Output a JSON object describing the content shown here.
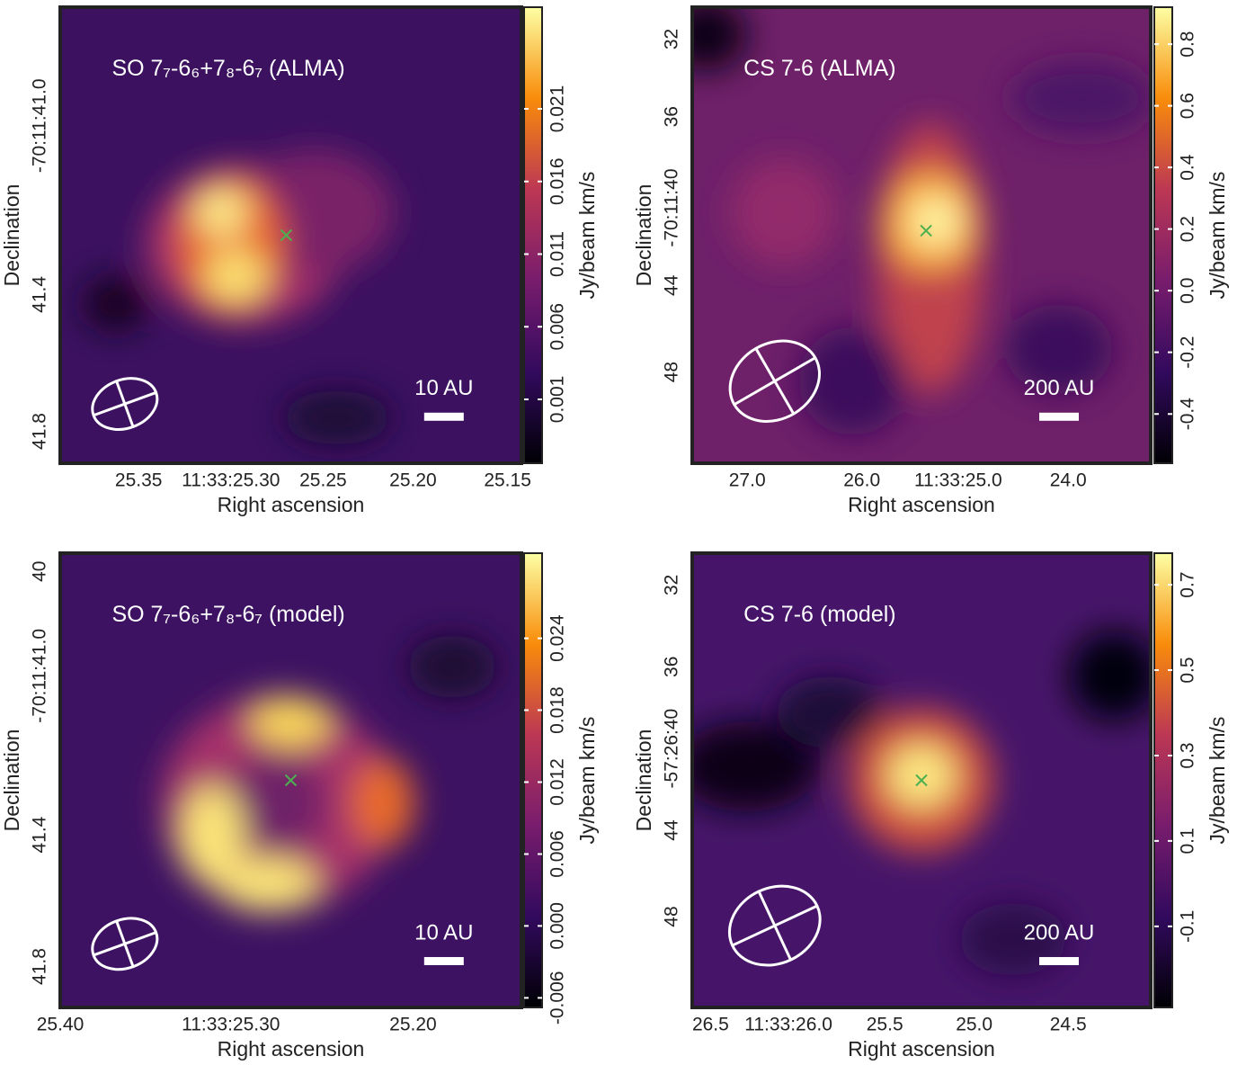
{
  "panels": [
    {
      "title": "SO 7₇-6₆+7₈-6₇ (ALMA)",
      "x_label": "Right ascension",
      "y_label": "Declination",
      "x_ticks": [
        "25.35",
        "11:33:25.30",
        "25.25",
        "25.20",
        "25.15"
      ],
      "y_ticks": [
        "-70:11:41.0",
        "41.4",
        "41.8"
      ],
      "scale_bar": "10 AU",
      "colorbar": {
        "label": "Jy/beam km/s",
        "lim": [
          -0.0034,
          0.028
        ],
        "ticks": [
          0.001,
          0.006,
          0.011,
          0.016,
          0.021
        ]
      }
    },
    {
      "title": "CS 7-6 (ALMA)",
      "x_label": "Right ascension",
      "y_label": "Declination",
      "x_ticks": [
        "27.0",
        "26.0",
        "11:33:25.0",
        "24.0"
      ],
      "y_ticks": [
        "32",
        "36",
        "-70:11:40",
        "44",
        "48"
      ],
      "scale_bar": "200 AU",
      "colorbar": {
        "label": "Jy/beam km/s",
        "lim": [
          -0.56,
          0.92
        ],
        "ticks": [
          -0.4,
          -0.2,
          {
            "value": 0,
            "label": "0.0"
          },
          0.2,
          0.4,
          0.6,
          0.8
        ]
      }
    },
    {
      "title": "SO 7₇-6₆+7₈-6₇ (model)",
      "x_label": "Right ascension",
      "y_label": "Declination",
      "x_ticks": [
        "25.40",
        "11:33:25.30",
        "25.20"
      ],
      "y_ticks": [
        "40",
        "-70:11:41.0",
        "41.4",
        "41.8"
      ],
      "scale_bar": "10 AU",
      "colorbar": {
        "label": "Jy/beam km/s",
        "lim": [
          -0.0068,
          0.0311
        ],
        "ticks": [
          -0.006,
          {
            "value": 0,
            "label": "0.000"
          },
          0.006,
          0.012,
          0.018,
          0.024
        ]
      }
    },
    {
      "title": "CS 7-6 (model)",
      "x_label": "Right ascension",
      "y_label": "Declination",
      "x_ticks": [
        "26.5",
        "11:33:26.0",
        "25.5",
        "25.0",
        "24.5"
      ],
      "y_ticks": [
        "32",
        "36",
        "-57:26:40",
        "44",
        "48"
      ],
      "scale_bar": "200 AU",
      "colorbar": {
        "label": "Jy/beam km/s",
        "lim": [
          -0.29,
          0.774
        ],
        "ticks": [
          -0.1,
          0.1,
          0.3,
          0.5,
          0.7
        ]
      }
    }
  ]
}
